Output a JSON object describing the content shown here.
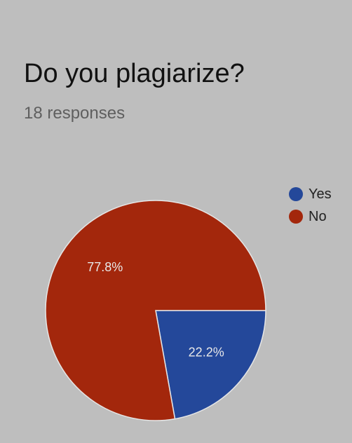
{
  "title": "Do you plagiarize?",
  "subtitle": "18 responses",
  "chart_data": {
    "type": "pie",
    "title": "Do you plagiarize?",
    "subtitle": "18 responses",
    "slices": [
      {
        "label": "Yes",
        "value": 22.2,
        "display": "22.2%",
        "color": "#24489a"
      },
      {
        "label": "No",
        "value": 77.8,
        "display": "77.8%",
        "color": "#a3270c"
      }
    ],
    "legend_position": "right"
  }
}
